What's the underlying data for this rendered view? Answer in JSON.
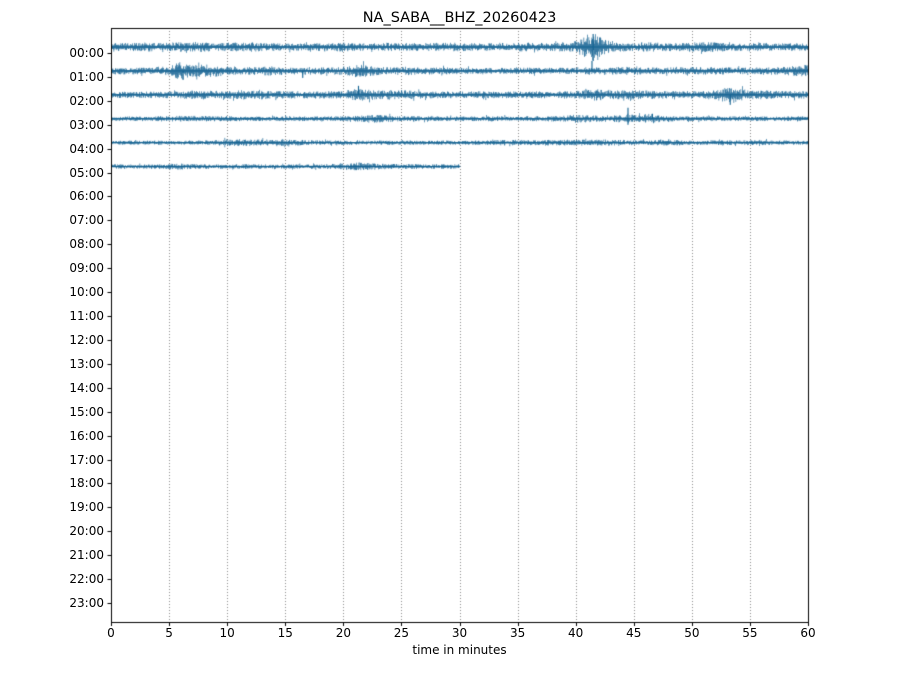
{
  "figure": {
    "background": "#ffffff",
    "trace_color": "#136291",
    "grid_color": "#8c8c8c",
    "axis_color": "#000000",
    "text_color": "#000000"
  },
  "chart_data": {
    "type": "line",
    "subtype": "seismogram-dayplot",
    "title": "NA_SABA__BHZ_20260423",
    "xlabel": "time in minutes",
    "xlim": [
      0,
      60
    ],
    "grid": "vertical-dotted",
    "x_ticks": [
      0,
      5,
      10,
      15,
      20,
      25,
      30,
      35,
      40,
      45,
      50,
      55,
      60
    ],
    "y_ticks": [
      "00:00",
      "01:00",
      "02:00",
      "03:00",
      "04:00",
      "05:00",
      "06:00",
      "07:00",
      "08:00",
      "09:00",
      "10:00",
      "11:00",
      "12:00",
      "13:00",
      "14:00",
      "15:00",
      "16:00",
      "17:00",
      "18:00",
      "19:00",
      "20:00",
      "21:00",
      "22:00",
      "23:00"
    ],
    "traces": [
      {
        "hour": "00:00",
        "start_minute": 0,
        "end_minute": 60,
        "envelope": [
          [
            0,
            3
          ],
          [
            2,
            3.2
          ],
          [
            4,
            3.8
          ],
          [
            5,
            3.5
          ],
          [
            7,
            4.0
          ],
          [
            9,
            3.2
          ],
          [
            12,
            3.8
          ],
          [
            13,
            3.2
          ],
          [
            15,
            3
          ],
          [
            17,
            2.8
          ],
          [
            19,
            3.2
          ],
          [
            20,
            3.6
          ],
          [
            21,
            3
          ],
          [
            23,
            3
          ],
          [
            24,
            3.4
          ],
          [
            26,
            3
          ],
          [
            28,
            3.2
          ],
          [
            30,
            3.4
          ],
          [
            31,
            3
          ],
          [
            33,
            3.2
          ],
          [
            35,
            3.6
          ],
          [
            36,
            3.4
          ],
          [
            38,
            3.2
          ],
          [
            40,
            4.5
          ],
          [
            41,
            9
          ],
          [
            41.5,
            12
          ],
          [
            42,
            8
          ],
          [
            43,
            4
          ],
          [
            44,
            3.5
          ],
          [
            45,
            3.6
          ],
          [
            46,
            3.8
          ],
          [
            47,
            3.4
          ],
          [
            48,
            3.2
          ],
          [
            50,
            3.6
          ],
          [
            51,
            4
          ],
          [
            52,
            3.8
          ],
          [
            53,
            3.2
          ],
          [
            55,
            2.8
          ],
          [
            56,
            3.4
          ],
          [
            57,
            2.8
          ],
          [
            59,
            3
          ],
          [
            60,
            3
          ]
        ],
        "spikes": [
          {
            "m": 41.5,
            "up": 13,
            "down": 14
          }
        ]
      },
      {
        "hour": "01:00",
        "start_minute": 0,
        "end_minute": 60,
        "envelope": [
          [
            0,
            2.8
          ],
          [
            3,
            2.6
          ],
          [
            5,
            3.5
          ],
          [
            5.5,
            6
          ],
          [
            6,
            7
          ],
          [
            6.5,
            5.5
          ],
          [
            7,
            4.5
          ],
          [
            8,
            5
          ],
          [
            9,
            4.5
          ],
          [
            10,
            3.5
          ],
          [
            11,
            3
          ],
          [
            12,
            3.2
          ],
          [
            13,
            3.8
          ],
          [
            14,
            3.5
          ],
          [
            15,
            3
          ],
          [
            16,
            2.8
          ],
          [
            17,
            3
          ],
          [
            18,
            2.8
          ],
          [
            20,
            3
          ],
          [
            21,
            5
          ],
          [
            21.5,
            5.5
          ],
          [
            22,
            4.5
          ],
          [
            23,
            3.2
          ],
          [
            24,
            3
          ],
          [
            25,
            3.4
          ],
          [
            26,
            3
          ],
          [
            28,
            2.8
          ],
          [
            30,
            2.6
          ],
          [
            32,
            2.4
          ],
          [
            34,
            2.4
          ],
          [
            36,
            2.6
          ],
          [
            38,
            2.4
          ],
          [
            40,
            2.6
          ],
          [
            41,
            3
          ],
          [
            42,
            2.8
          ],
          [
            44,
            3.2
          ],
          [
            45,
            3
          ],
          [
            46,
            2.8
          ],
          [
            48,
            2.6
          ],
          [
            50,
            3
          ],
          [
            51,
            3.2
          ],
          [
            52,
            3
          ],
          [
            54,
            2.6
          ],
          [
            56,
            2.8
          ],
          [
            58,
            3.2
          ],
          [
            59,
            4
          ],
          [
            60,
            5
          ]
        ],
        "spikes": [
          {
            "m": 6.2,
            "up": 0,
            "down": 9
          },
          {
            "m": 16.5,
            "up": 0,
            "down": 7
          },
          {
            "m": 41.4,
            "up": 10,
            "down": 0
          }
        ]
      },
      {
        "hour": "02:00",
        "start_minute": 0,
        "end_minute": 60,
        "envelope": [
          [
            0,
            2.6
          ],
          [
            2,
            2.4
          ],
          [
            4,
            2.6
          ],
          [
            6,
            2.8
          ],
          [
            7,
            3.4
          ],
          [
            8,
            3.6
          ],
          [
            9,
            3
          ],
          [
            10,
            3
          ],
          [
            11,
            3.6
          ],
          [
            12,
            4
          ],
          [
            13,
            3.6
          ],
          [
            14,
            3
          ],
          [
            15,
            2.8
          ],
          [
            16,
            3
          ],
          [
            18,
            2.8
          ],
          [
            20,
            3.2
          ],
          [
            21,
            4.5
          ],
          [
            21.5,
            5
          ],
          [
            22,
            4.5
          ],
          [
            23,
            3.4
          ],
          [
            24,
            3.6
          ],
          [
            25,
            3.8
          ],
          [
            26,
            3.2
          ],
          [
            27,
            2.8
          ],
          [
            28,
            2.8
          ],
          [
            30,
            2.6
          ],
          [
            32,
            2.8
          ],
          [
            34,
            2.6
          ],
          [
            36,
            2.8
          ],
          [
            38,
            2.6
          ],
          [
            40,
            3
          ],
          [
            41,
            4.2
          ],
          [
            42,
            4.4
          ],
          [
            43,
            3.4
          ],
          [
            44,
            3.6
          ],
          [
            45,
            3.8
          ],
          [
            46,
            3.4
          ],
          [
            47,
            3
          ],
          [
            48,
            2.8
          ],
          [
            50,
            3
          ],
          [
            52,
            3.6
          ],
          [
            53,
            6.5
          ],
          [
            53.5,
            7
          ],
          [
            54,
            5
          ],
          [
            55,
            3.4
          ],
          [
            56,
            3.6
          ],
          [
            57,
            3.2
          ],
          [
            58,
            2.8
          ],
          [
            59,
            3
          ],
          [
            60,
            3.2
          ]
        ],
        "spikes": [
          {
            "m": 21.3,
            "up": 9,
            "down": 0
          },
          {
            "m": 53.3,
            "up": 0,
            "down": 10
          }
        ]
      },
      {
        "hour": "03:00",
        "start_minute": 0,
        "end_minute": 60,
        "envelope": [
          [
            0,
            1.8
          ],
          [
            3,
            1.9
          ],
          [
            5,
            2.2
          ],
          [
            7,
            2.4
          ],
          [
            9,
            2
          ],
          [
            11,
            1.9
          ],
          [
            13,
            1.8
          ],
          [
            15,
            1.9
          ],
          [
            17,
            1.8
          ],
          [
            19,
            1.9
          ],
          [
            21,
            2.2
          ],
          [
            22,
            3
          ],
          [
            23,
            3.2
          ],
          [
            24,
            2.6
          ],
          [
            25,
            2
          ],
          [
            27,
            1.9
          ],
          [
            29,
            1.8
          ],
          [
            31,
            1.9
          ],
          [
            33,
            2
          ],
          [
            35,
            2
          ],
          [
            37,
            2
          ],
          [
            39,
            2.4
          ],
          [
            40,
            3.2
          ],
          [
            41,
            3
          ],
          [
            42,
            2.4
          ],
          [
            43,
            2.6
          ],
          [
            44,
            3
          ],
          [
            44.5,
            4
          ],
          [
            45,
            3
          ],
          [
            46,
            3.6
          ],
          [
            46.5,
            3.8
          ],
          [
            47,
            3
          ],
          [
            48,
            2.4
          ],
          [
            49,
            2
          ],
          [
            51,
            1.9
          ],
          [
            53,
            1.8
          ],
          [
            55,
            1.9
          ],
          [
            57,
            1.8
          ],
          [
            59,
            1.9
          ],
          [
            60,
            1.9
          ]
        ],
        "spikes": [
          {
            "m": 44.5,
            "up": 11,
            "down": 6
          },
          {
            "m": 46.6,
            "up": 5,
            "down": 0
          }
        ]
      },
      {
        "hour": "04:00",
        "start_minute": 0,
        "end_minute": 60,
        "envelope": [
          [
            0,
            1.7
          ],
          [
            2,
            1.6
          ],
          [
            4,
            1.7
          ],
          [
            6,
            1.6
          ],
          [
            8,
            1.7
          ],
          [
            9,
            2
          ],
          [
            10,
            2.6
          ],
          [
            11,
            2.8
          ],
          [
            12,
            2.6
          ],
          [
            13,
            2.4
          ],
          [
            14,
            2.8
          ],
          [
            15,
            2.6
          ],
          [
            16,
            2.2
          ],
          [
            17,
            2
          ],
          [
            18,
            1.8
          ],
          [
            20,
            1.7
          ],
          [
            22,
            1.6
          ],
          [
            24,
            1.7
          ],
          [
            26,
            1.6
          ],
          [
            28,
            1.7
          ],
          [
            30,
            1.7
          ],
          [
            32,
            1.8
          ],
          [
            33,
            2
          ],
          [
            34,
            2.2
          ],
          [
            35,
            2.2
          ],
          [
            36,
            2
          ],
          [
            38,
            2.2
          ],
          [
            39,
            2.4
          ],
          [
            40,
            2.2
          ],
          [
            41,
            2.4
          ],
          [
            42,
            2.6
          ],
          [
            43,
            2.4
          ],
          [
            44,
            2.2
          ],
          [
            45,
            2
          ],
          [
            46,
            2
          ],
          [
            47,
            2.2
          ],
          [
            48,
            2.2
          ],
          [
            49,
            2
          ],
          [
            50,
            1.8
          ],
          [
            52,
            1.8
          ],
          [
            54,
            1.8
          ],
          [
            55,
            2
          ],
          [
            56,
            2
          ],
          [
            57,
            1.8
          ],
          [
            58,
            1.7
          ],
          [
            59,
            1.7
          ],
          [
            60,
            1.7
          ]
        ],
        "spikes": []
      },
      {
        "hour": "05:00",
        "start_minute": 0,
        "end_minute": 30,
        "envelope": [
          [
            0,
            1.8
          ],
          [
            2,
            1.7
          ],
          [
            4,
            1.8
          ],
          [
            5,
            2.2
          ],
          [
            6,
            2.4
          ],
          [
            7,
            2
          ],
          [
            8,
            1.8
          ],
          [
            10,
            1.7
          ],
          [
            12,
            1.8
          ],
          [
            14,
            1.7
          ],
          [
            16,
            1.8
          ],
          [
            18,
            1.8
          ],
          [
            20,
            2.2
          ],
          [
            21,
            3
          ],
          [
            21.5,
            3.2
          ],
          [
            22,
            3
          ],
          [
            22.5,
            2.6
          ],
          [
            23,
            2.2
          ],
          [
            24,
            2
          ],
          [
            25,
            2.2
          ],
          [
            26,
            2
          ],
          [
            27,
            1.9
          ],
          [
            28,
            1.9
          ],
          [
            29,
            1.8
          ],
          [
            30,
            1.8
          ]
        ],
        "spikes": []
      }
    ]
  }
}
